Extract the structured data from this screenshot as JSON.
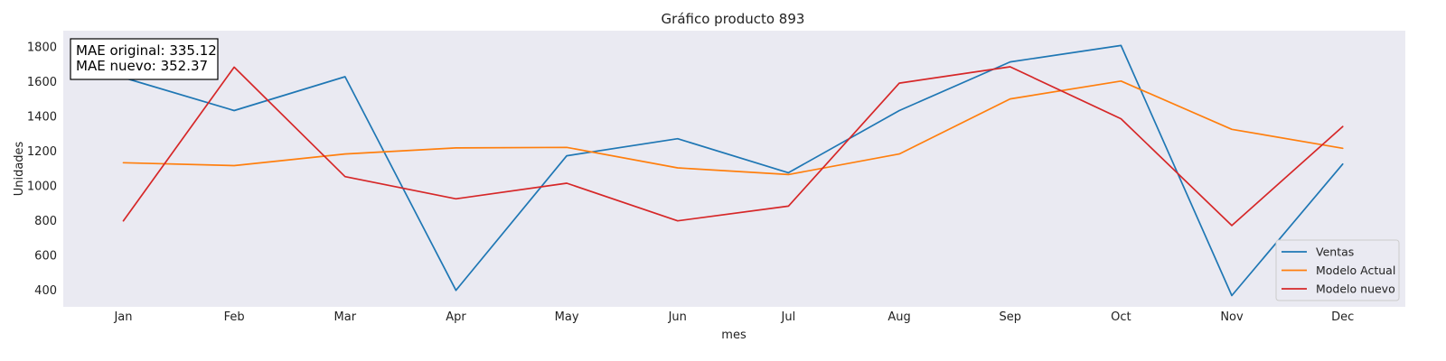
{
  "chart_data": {
    "type": "line",
    "title": "Gráfico producto 893",
    "xlabel": "mes",
    "ylabel": "Unidades",
    "categories": [
      "Jan",
      "Feb",
      "Mar",
      "Apr",
      "May",
      "Jun",
      "Jul",
      "Aug",
      "Sep",
      "Oct",
      "Nov",
      "Dec"
    ],
    "y_ticks": [
      400,
      600,
      800,
      1000,
      1200,
      1400,
      1600,
      1800
    ],
    "ylim": [
      300,
      1890
    ],
    "grid": false,
    "background_color": "#eaeaf2",
    "legend_position": "lower right",
    "series": [
      {
        "name": "Ventas",
        "color": "#1f77b4",
        "values": [
          1620,
          1430,
          1625,
          395,
          1170,
          1268,
          1072,
          1430,
          1710,
          1805,
          365,
          1122
        ]
      },
      {
        "name": "Modelo Actual",
        "color": "#ff7f0e",
        "values": [
          1130,
          1113,
          1180,
          1215,
          1218,
          1100,
          1062,
          1180,
          1497,
          1600,
          1322,
          1213
        ]
      },
      {
        "name": "Modelo nuevo",
        "color": "#d62728",
        "values": [
          795,
          1680,
          1050,
          922,
          1012,
          795,
          880,
          1588,
          1682,
          1383,
          768,
          1338
        ]
      }
    ],
    "annotation": {
      "lines": [
        "MAE original: 335.12",
        "MAE nuevo: 352.37"
      ]
    }
  }
}
